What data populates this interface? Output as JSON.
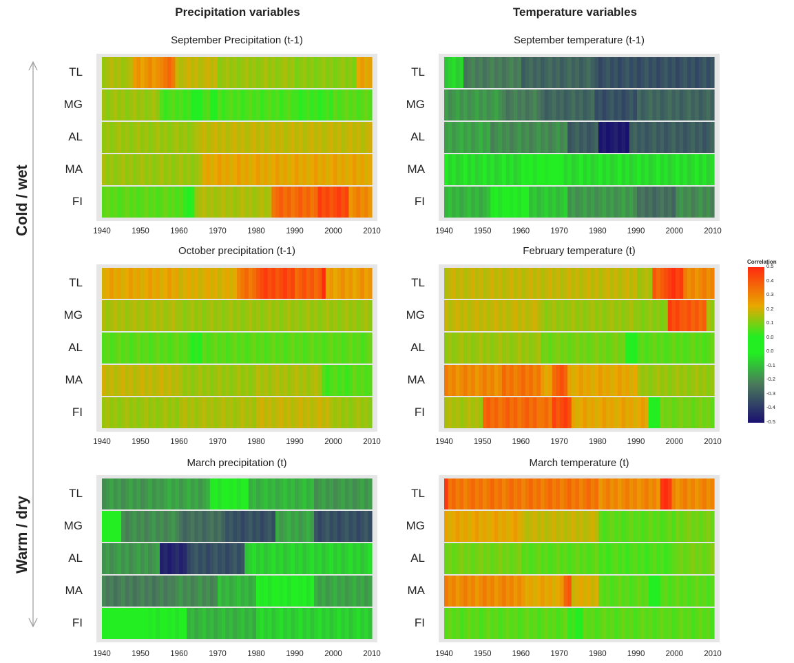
{
  "column_titles": [
    "Precipitation variables",
    "Temperature variables"
  ],
  "side_labels": {
    "top": "Cold / wet",
    "bottom": "Warm / dry"
  },
  "legend": {
    "title": "Correlation",
    "ticks": [
      "0.5",
      "0.4",
      "0.3",
      "0.2",
      "0.1",
      "0.0",
      "0.0",
      "-0.1",
      "-0.2",
      "-0.3",
      "-0.4",
      "-0.5"
    ],
    "colors": {
      "high": "#ff2a10",
      "mid_high": "#e8a800",
      "zero": "#22ee22",
      "mid_low": "#4a7a5a",
      "low": "#1a1070"
    }
  },
  "chart_data": [
    {
      "type": "heatmap",
      "title": "September Precipitation (t-1)",
      "rows": [
        "TL",
        "MG",
        "AL",
        "MA",
        "FI"
      ],
      "x_ticks": [
        "1940",
        "1950",
        "1960",
        "1970",
        "1980",
        "1990",
        "2000",
        "2010"
      ],
      "xlim": [
        1940,
        2010
      ],
      "value_range": [
        -0.5,
        0.5
      ],
      "segments": {
        "TL": [
          [
            1940,
            0.22
          ],
          [
            1948,
            0.33
          ],
          [
            1955,
            0.38
          ],
          [
            1959,
            0.25
          ],
          [
            1970,
            0.2
          ],
          [
            1990,
            0.18
          ],
          [
            2006,
            0.3
          ],
          [
            2010,
            0.3
          ]
        ],
        "MG": [
          [
            1940,
            0.2
          ],
          [
            1955,
            0.1
          ],
          [
            1963,
            0.0
          ],
          [
            1966,
            0.12
          ],
          [
            1968,
            0.0
          ],
          [
            1970,
            0.1
          ],
          [
            1990,
            0.08
          ],
          [
            2000,
            0.12
          ],
          [
            2010,
            0.12
          ]
        ],
        "AL": [
          [
            1940,
            0.2
          ],
          [
            1965,
            0.25
          ],
          [
            1980,
            0.25
          ],
          [
            2010,
            0.25
          ]
        ],
        "MA": [
          [
            1940,
            0.2
          ],
          [
            1966,
            0.3
          ],
          [
            1980,
            0.3
          ],
          [
            2010,
            0.28
          ]
        ],
        "FI": [
          [
            1940,
            0.12
          ],
          [
            1961,
            0.05
          ],
          [
            1964,
            0.22
          ],
          [
            1984,
            0.4
          ],
          [
            1996,
            0.45
          ],
          [
            2004,
            0.35
          ],
          [
            2010,
            0.35
          ]
        ]
      }
    },
    {
      "type": "heatmap",
      "title": "September temperature (t-1)",
      "rows": [
        "TL",
        "MG",
        "AL",
        "MA",
        "FI"
      ],
      "x_ticks": [
        "1940",
        "1950",
        "1960",
        "1970",
        "1980",
        "1990",
        "2000",
        "2010"
      ],
      "xlim": [
        1940,
        2010
      ],
      "value_range": [
        -0.5,
        0.5
      ],
      "segments": {
        "TL": [
          [
            1940,
            -0.1
          ],
          [
            1945,
            -0.25
          ],
          [
            1960,
            -0.3
          ],
          [
            1979,
            -0.35
          ],
          [
            1995,
            -0.35
          ],
          [
            2009,
            -0.35
          ],
          [
            2010,
            0.0
          ]
        ],
        "MG": [
          [
            1940,
            -0.2
          ],
          [
            1955,
            -0.25
          ],
          [
            1965,
            -0.3
          ],
          [
            1979,
            -0.35
          ],
          [
            1990,
            -0.3
          ],
          [
            2010,
            -0.3
          ]
        ],
        "AL": [
          [
            1940,
            -0.18
          ],
          [
            1952,
            -0.22
          ],
          [
            1972,
            -0.32
          ],
          [
            1980,
            -0.48
          ],
          [
            1988,
            -0.32
          ],
          [
            2010,
            -0.28
          ]
        ],
        "MA": [
          [
            1940,
            -0.08
          ],
          [
            1960,
            -0.05
          ],
          [
            1967,
            0.0
          ],
          [
            1970,
            -0.08
          ],
          [
            2010,
            -0.1
          ]
        ],
        "FI": [
          [
            1940,
            -0.15
          ],
          [
            1952,
            -0.05
          ],
          [
            1962,
            -0.12
          ],
          [
            1972,
            -0.2
          ],
          [
            1990,
            -0.28
          ],
          [
            2000,
            -0.22
          ],
          [
            2010,
            -0.2
          ]
        ]
      }
    },
    {
      "type": "heatmap",
      "title": "October precipitation (t-1)",
      "rows": [
        "TL",
        "MG",
        "AL",
        "MA",
        "FI"
      ],
      "x_ticks": [
        "1940",
        "1950",
        "1960",
        "1970",
        "1980",
        "1990",
        "2000",
        "2010"
      ],
      "xlim": [
        1940,
        2010
      ],
      "value_range": [
        -0.5,
        0.5
      ],
      "segments": {
        "TL": [
          [
            1940,
            0.3
          ],
          [
            1960,
            0.28
          ],
          [
            1975,
            0.38
          ],
          [
            1980,
            0.45
          ],
          [
            1990,
            0.42
          ],
          [
            1997,
            0.5
          ],
          [
            1998,
            0.32
          ],
          [
            2010,
            0.32
          ]
        ],
        "MG": [
          [
            1940,
            0.22
          ],
          [
            1960,
            0.2
          ],
          [
            1980,
            0.2
          ],
          [
            1990,
            0.2
          ],
          [
            2010,
            0.2
          ]
        ],
        "AL": [
          [
            1940,
            0.12
          ],
          [
            1963,
            0.05
          ],
          [
            1965,
            0.0
          ],
          [
            1966,
            0.12
          ],
          [
            1990,
            0.12
          ],
          [
            2010,
            0.15
          ]
        ],
        "MA": [
          [
            1940,
            0.25
          ],
          [
            1960,
            0.2
          ],
          [
            1980,
            0.22
          ],
          [
            1997,
            0.1
          ],
          [
            2005,
            0.12
          ],
          [
            2010,
            0.12
          ]
        ],
        "FI": [
          [
            1940,
            0.2
          ],
          [
            1960,
            0.22
          ],
          [
            1980,
            0.25
          ],
          [
            2000,
            0.2
          ],
          [
            2010,
            0.25
          ]
        ]
      }
    },
    {
      "type": "heatmap",
      "title": "February temperature (t)",
      "rows": [
        "TL",
        "MG",
        "AL",
        "MA",
        "FI"
      ],
      "x_ticks": [
        "1940",
        "1950",
        "1960",
        "1970",
        "1980",
        "1990",
        "2000",
        "2010"
      ],
      "xlim": [
        1940,
        2010
      ],
      "value_range": [
        -0.5,
        0.5
      ],
      "segments": {
        "TL": [
          [
            1940,
            0.25
          ],
          [
            1970,
            0.25
          ],
          [
            1990,
            0.22
          ],
          [
            1994,
            0.42
          ],
          [
            1998,
            0.48
          ],
          [
            2002,
            0.35
          ],
          [
            2010,
            0.35
          ]
        ],
        "MG": [
          [
            1940,
            0.25
          ],
          [
            1965,
            0.2
          ],
          [
            1990,
            0.18
          ],
          [
            1998,
            0.45
          ],
          [
            2002,
            0.42
          ],
          [
            2008,
            0.2
          ],
          [
            2010,
            0.2
          ]
        ],
        "AL": [
          [
            1940,
            0.2
          ],
          [
            1965,
            0.15
          ],
          [
            1987,
            0.0
          ],
          [
            1990,
            0.12
          ],
          [
            2010,
            0.12
          ]
        ],
        "MA": [
          [
            1940,
            0.35
          ],
          [
            1955,
            0.38
          ],
          [
            1965,
            0.3
          ],
          [
            1968,
            0.42
          ],
          [
            1972,
            0.3
          ],
          [
            1990,
            0.2
          ],
          [
            2010,
            0.25
          ]
        ],
        "FI": [
          [
            1940,
            0.22
          ],
          [
            1950,
            0.4
          ],
          [
            1965,
            0.38
          ],
          [
            1968,
            0.45
          ],
          [
            1973,
            0.3
          ],
          [
            1993,
            0.0
          ],
          [
            1996,
            0.15
          ],
          [
            2010,
            0.2
          ]
        ]
      }
    },
    {
      "type": "heatmap",
      "title": "March precipitation (t)",
      "rows": [
        "TL",
        "MG",
        "AL",
        "MA",
        "FI"
      ],
      "x_ticks": [
        "1940",
        "1950",
        "1960",
        "1970",
        "1980",
        "1990",
        "2000",
        "2010"
      ],
      "xlim": [
        1940,
        2010
      ],
      "value_range": [
        -0.5,
        0.5
      ],
      "segments": {
        "TL": [
          [
            1940,
            -0.2
          ],
          [
            1955,
            -0.18
          ],
          [
            1968,
            -0.05
          ],
          [
            1978,
            -0.15
          ],
          [
            1995,
            -0.2
          ],
          [
            2010,
            -0.22
          ]
        ],
        "MG": [
          [
            1940,
            0.0
          ],
          [
            1945,
            -0.22
          ],
          [
            1960,
            -0.28
          ],
          [
            1972,
            -0.35
          ],
          [
            1985,
            -0.18
          ],
          [
            1995,
            -0.35
          ],
          [
            2010,
            -0.35
          ]
        ],
        "AL": [
          [
            1940,
            -0.2
          ],
          [
            1955,
            -0.45
          ],
          [
            1962,
            -0.35
          ],
          [
            1977,
            -0.1
          ],
          [
            2010,
            -0.08
          ]
        ],
        "MA": [
          [
            1940,
            -0.25
          ],
          [
            1958,
            -0.22
          ],
          [
            1970,
            -0.15
          ],
          [
            1980,
            -0.05
          ],
          [
            1995,
            -0.18
          ],
          [
            2010,
            -0.12
          ]
        ],
        "FI": [
          [
            1940,
            0.0
          ],
          [
            1952,
            -0.05
          ],
          [
            1962,
            -0.15
          ],
          [
            1980,
            -0.1
          ],
          [
            2010,
            -0.1
          ]
        ]
      }
    },
    {
      "type": "heatmap",
      "title": "March temperature (t)",
      "rows": [
        "TL",
        "MG",
        "AL",
        "MA",
        "FI"
      ],
      "x_ticks": [
        "1940",
        "1950",
        "1960",
        "1970",
        "1980",
        "1990",
        "2000",
        "2010"
      ],
      "xlim": [
        1940,
        2010
      ],
      "value_range": [
        -0.5,
        0.5
      ],
      "segments": {
        "TL": [
          [
            1940,
            0.5
          ],
          [
            1941,
            0.38
          ],
          [
            1980,
            0.35
          ],
          [
            1996,
            0.48
          ],
          [
            1999,
            0.35
          ],
          [
            2010,
            0.35
          ]
        ],
        "MG": [
          [
            1940,
            0.3
          ],
          [
            1960,
            0.25
          ],
          [
            1980,
            0.12
          ],
          [
            2000,
            0.15
          ],
          [
            2010,
            0.15
          ]
        ],
        "AL": [
          [
            1940,
            0.15
          ],
          [
            1960,
            0.12
          ],
          [
            1980,
            0.1
          ],
          [
            2000,
            0.15
          ],
          [
            2010,
            0.15
          ]
        ],
        "MA": [
          [
            1940,
            0.35
          ],
          [
            1960,
            0.3
          ],
          [
            1971,
            0.42
          ],
          [
            1973,
            0.28
          ],
          [
            1980,
            0.12
          ],
          [
            1993,
            0.0
          ],
          [
            1996,
            0.12
          ],
          [
            2010,
            0.12
          ]
        ],
        "FI": [
          [
            1940,
            0.12
          ],
          [
            1972,
            0.08
          ],
          [
            1974,
            0.02
          ],
          [
            1976,
            0.12
          ],
          [
            2010,
            0.15
          ]
        ]
      }
    }
  ]
}
